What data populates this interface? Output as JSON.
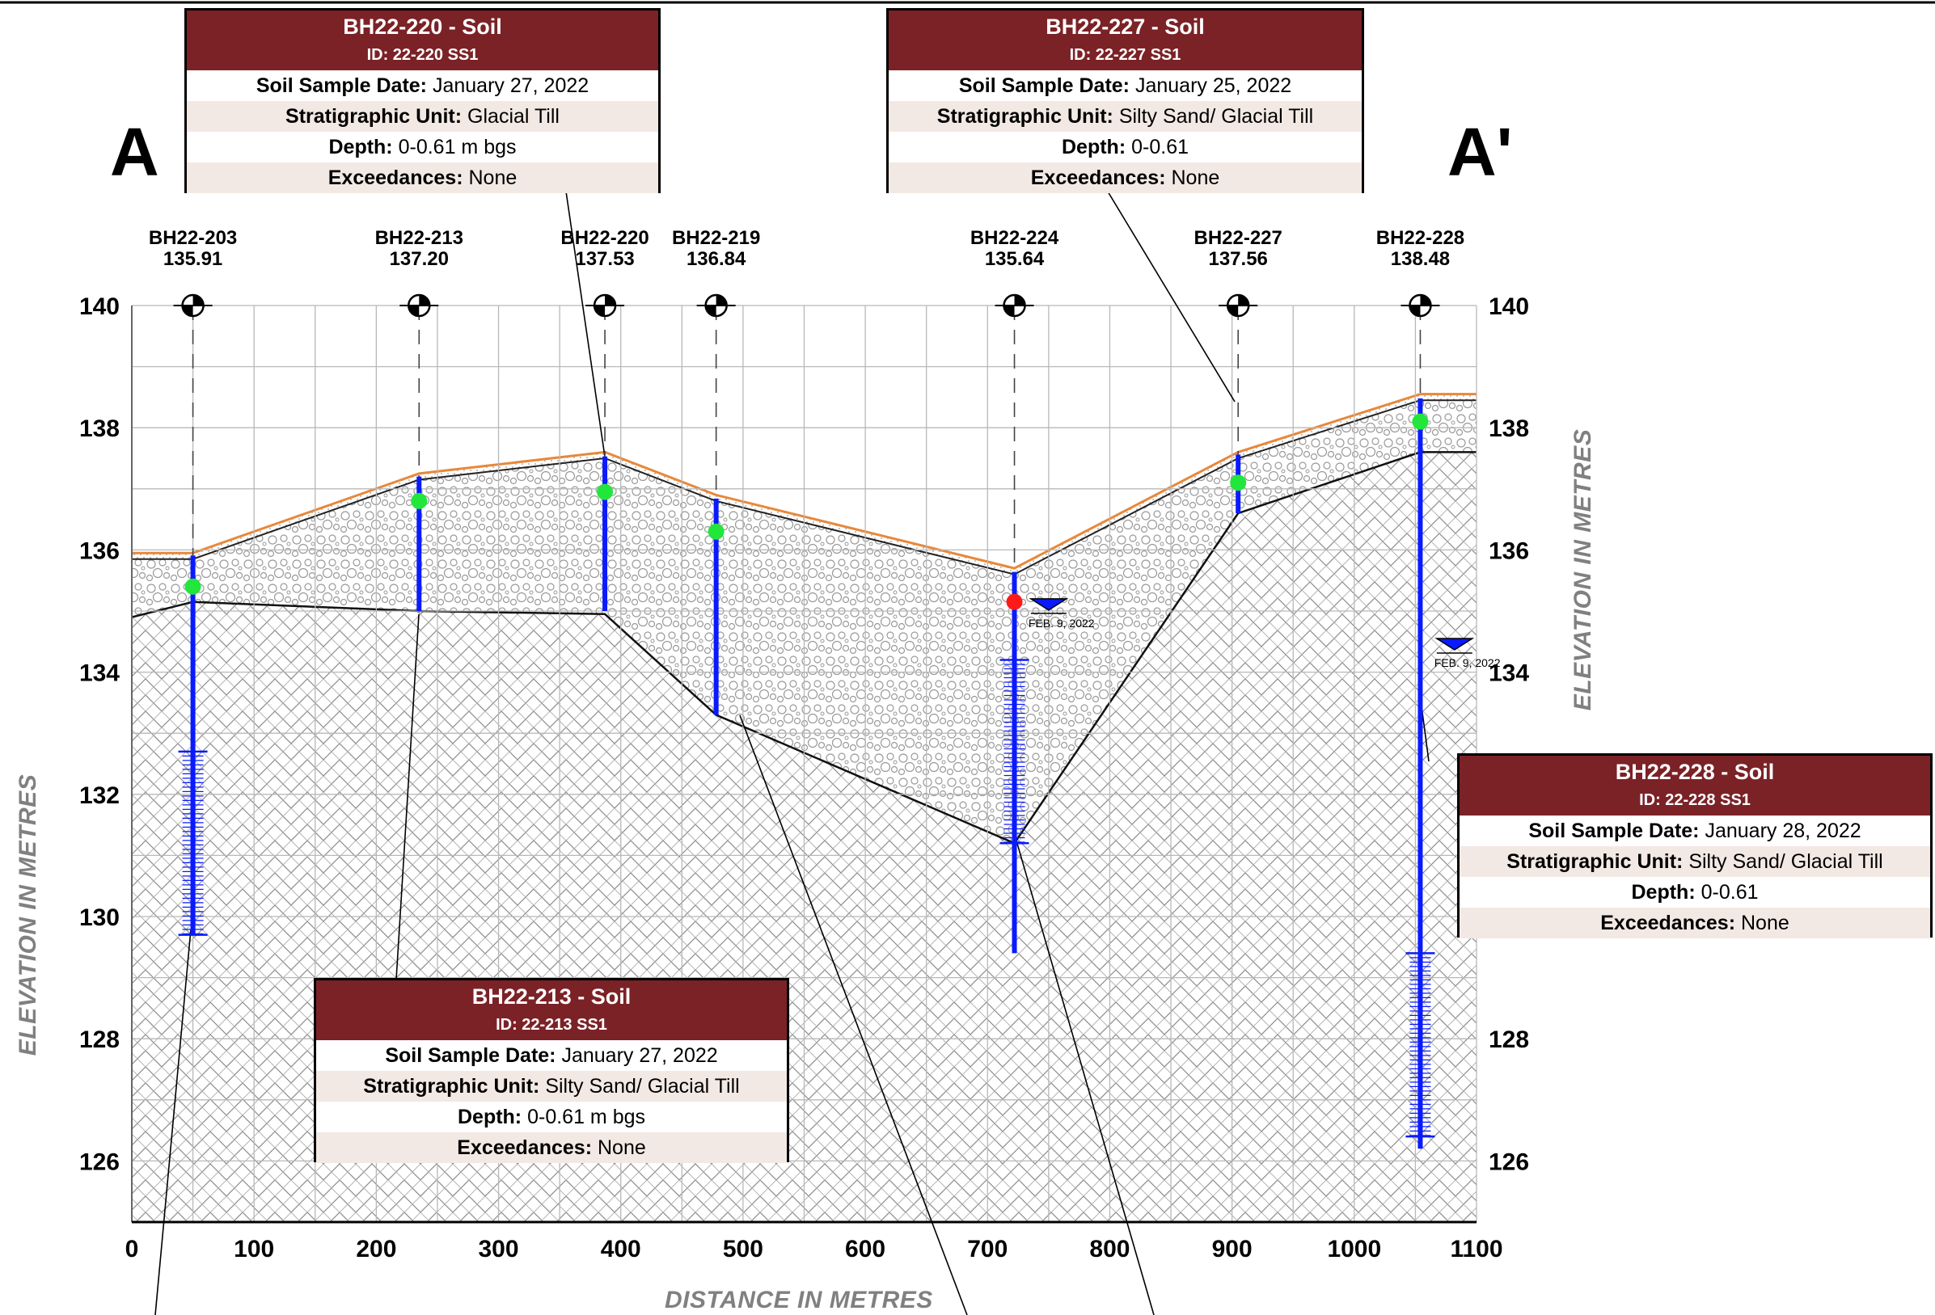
{
  "section": {
    "start_label": "A",
    "end_label": "A'"
  },
  "axes": {
    "x_title": "DISTANCE IN METRES",
    "y_title": "ELEVATION IN METRES",
    "x_ticks": [
      "0",
      "100",
      "200",
      "300",
      "400",
      "500",
      "600",
      "700",
      "800",
      "900",
      "1000",
      "1100"
    ],
    "y_ticks": [
      "126",
      "128",
      "130",
      "132",
      "134",
      "136",
      "138",
      "140"
    ],
    "x_range": [
      0,
      1100
    ],
    "y_range": [
      125,
      140
    ]
  },
  "boreholes": [
    {
      "name": "BH22-203",
      "elev": "135.91",
      "x": 50,
      "top": 135.91,
      "bottom": 129.7,
      "sample": 135.4,
      "sample_status": "none"
    },
    {
      "name": "BH22-213",
      "elev": "137.20",
      "x": 235,
      "top": 137.2,
      "bottom": 135.0,
      "sample": 136.8,
      "sample_status": "none"
    },
    {
      "name": "BH22-220",
      "elev": "137.53",
      "x": 387,
      "top": 137.53,
      "bottom": 135.0,
      "sample": 136.95,
      "sample_status": "none"
    },
    {
      "name": "BH22-219",
      "elev": "136.84",
      "x": 478,
      "top": 136.84,
      "bottom": 133.3,
      "sample": 136.3,
      "sample_status": "none"
    },
    {
      "name": "BH22-224",
      "elev": "135.64",
      "x": 722,
      "top": 135.64,
      "bottom": 129.4,
      "sample": 135.15,
      "sample_status": "exceedance"
    },
    {
      "name": "BH22-227",
      "elev": "137.56",
      "x": 905,
      "top": 137.56,
      "bottom": 136.6,
      "sample": 137.1,
      "sample_status": "none"
    },
    {
      "name": "BH22-228",
      "elev": "138.48",
      "x": 1054,
      "top": 138.48,
      "bottom": 126.2,
      "sample": 138.1,
      "sample_status": "none"
    }
  ],
  "screens": [
    {
      "borehole": "BH22-203",
      "top": 132.7,
      "bottom": 129.7
    },
    {
      "borehole": "BH22-224",
      "top": 134.2,
      "bottom": 131.2
    },
    {
      "borehole": "BH22-228",
      "top": 129.4,
      "bottom": 126.4
    }
  ],
  "water_levels": [
    {
      "borehole": "BH22-224",
      "x": 750,
      "elev": 135.2,
      "label": "FEB. 9, 2022"
    },
    {
      "borehole": "BH22-228",
      "x": 1082,
      "elev": 134.55,
      "label": "FEB. 9, 2022"
    }
  ],
  "layers": {
    "ground": [
      [
        0,
        135.95
      ],
      [
        50,
        135.95
      ],
      [
        235,
        137.25
      ],
      [
        387,
        137.6
      ],
      [
        478,
        136.9
      ],
      [
        722,
        135.7
      ],
      [
        905,
        137.6
      ],
      [
        1054,
        138.55
      ],
      [
        1100,
        138.55
      ]
    ],
    "sand_bottom": [
      [
        0,
        135.85
      ],
      [
        50,
        135.85
      ],
      [
        235,
        137.15
      ],
      [
        387,
        137.5
      ],
      [
        478,
        136.8
      ],
      [
        722,
        135.6
      ],
      [
        905,
        137.5
      ],
      [
        1054,
        138.45
      ],
      [
        1100,
        138.45
      ]
    ],
    "till_bottom": [
      [
        0,
        134.9
      ],
      [
        50,
        135.15
      ],
      [
        235,
        135.0
      ],
      [
        387,
        134.95
      ],
      [
        478,
        133.3
      ],
      [
        722,
        131.2
      ],
      [
        905,
        136.6
      ],
      [
        1054,
        137.6
      ],
      [
        1100,
        137.6
      ]
    ]
  },
  "colors": {
    "header": "#7b2227",
    "borehole": "#0a1aff",
    "sample_ok": "#22e63c",
    "sample_exceed": "#ff1a1a",
    "sand_line": "#e8883a"
  },
  "callouts": [
    {
      "title": "BH22-220 - Soil",
      "id_text": "ID: 22-220 SS1",
      "date_label": "Soil Sample Date:",
      "date": "January 27, 2022",
      "unit_label": "Stratigraphic Unit:",
      "unit": "Glacial Till",
      "depth_label": "Depth:",
      "depth": "0-0.61 m bgs",
      "exc_label": "Exceedances:",
      "exc": "None"
    },
    {
      "title": "BH22-227 - Soil",
      "id_text": "ID: 22-227 SS1",
      "date_label": "Soil Sample Date:",
      "date": "January 25, 2022",
      "unit_label": "Stratigraphic Unit:",
      "unit": "Silty Sand/ Glacial Till",
      "depth_label": "Depth:",
      "depth": "0-0.61",
      "exc_label": "Exceedances:",
      "exc": "None"
    },
    {
      "title": "BH22-228 - Soil",
      "id_text": "ID: 22-228 SS1",
      "date_label": "Soil Sample Date:",
      "date": "January 28, 2022",
      "unit_label": "Stratigraphic Unit:",
      "unit": "Silty Sand/ Glacial Till",
      "depth_label": "Depth:",
      "depth": "0-0.61",
      "exc_label": "Exceedances:",
      "exc": "None"
    },
    {
      "title": "BH22-213 - Soil",
      "id_text": "ID: 22-213 SS1",
      "date_label": "Soil Sample Date:",
      "date": "January 27, 2022",
      "unit_label": "Stratigraphic Unit:",
      "unit": "Silty Sand/ Glacial Till",
      "depth_label": "Depth:",
      "depth": "0-0.61 m bgs",
      "exc_label": "Exceedances:",
      "exc": "None"
    }
  ]
}
